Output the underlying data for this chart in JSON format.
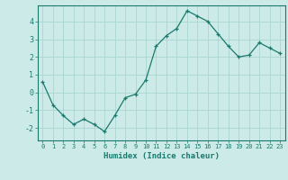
{
  "x": [
    0,
    1,
    2,
    3,
    4,
    5,
    6,
    7,
    8,
    9,
    10,
    11,
    12,
    13,
    14,
    15,
    16,
    17,
    18,
    19,
    20,
    21,
    22,
    23
  ],
  "y": [
    0.6,
    -0.7,
    -1.3,
    -1.8,
    -1.5,
    -1.8,
    -2.2,
    -1.3,
    -0.3,
    -0.1,
    0.7,
    2.6,
    3.2,
    3.6,
    4.6,
    4.3,
    4.0,
    3.3,
    2.6,
    2.0,
    2.1,
    2.8,
    2.5,
    2.2
  ],
  "xlabel": "Humidex (Indice chaleur)",
  "ylim": [
    -2.7,
    4.9
  ],
  "xlim": [
    -0.5,
    23.5
  ],
  "yticks": [
    -2,
    -1,
    0,
    1,
    2,
    3,
    4
  ],
  "xticks": [
    0,
    1,
    2,
    3,
    4,
    5,
    6,
    7,
    8,
    9,
    10,
    11,
    12,
    13,
    14,
    15,
    16,
    17,
    18,
    19,
    20,
    21,
    22,
    23
  ],
  "line_color": "#1a7a6e",
  "marker_color": "#1a7a6e",
  "bg_color": "#cceae7",
  "grid_color": "#aad4d0",
  "tick_color": "#1a7a6e",
  "label_color": "#1a7a6e",
  "spine_color": "#1a7a6e"
}
